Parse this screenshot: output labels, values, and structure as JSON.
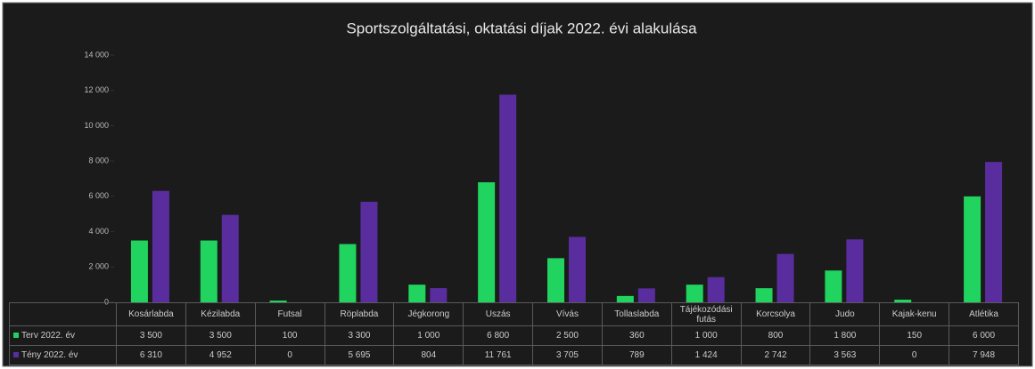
{
  "chart_data": {
    "type": "bar",
    "title": "Sportszolgáltatási, oktatási díjak 2022. évi alakulása",
    "categories": [
      "Kosárlabda",
      "Kézilabda",
      "Futsal",
      "Röplabda",
      "Jégkorong",
      "Uszás",
      "Vívás",
      "Tollaslabda",
      "Tájékozódási futás",
      "Korcsolya",
      "Judo",
      "Kajak-kenu",
      "Atlétika"
    ],
    "series": [
      {
        "name": "Terv 2022. év",
        "color": "#21d35f",
        "values": [
          3500,
          3500,
          100,
          3300,
          1000,
          6800,
          2500,
          360,
          1000,
          800,
          1800,
          150,
          6000
        ],
        "value_labels": [
          "3 500",
          "3 500",
          "100",
          "3 300",
          "1 000",
          "6 800",
          "2 500",
          "360",
          "1 000",
          "800",
          "1 800",
          "150",
          "6 000"
        ]
      },
      {
        "name": "Tény 2022. év",
        "color": "#5a2d9e",
        "values": [
          6310,
          4952,
          0,
          5695,
          804,
          11761,
          3705,
          789,
          1424,
          2742,
          3563,
          0,
          7948
        ],
        "value_labels": [
          "6 310",
          "4 952",
          "0",
          "5 695",
          "804",
          "11 761",
          "3 705",
          "789",
          "1 424",
          "2 742",
          "3 563",
          "0",
          "7 948"
        ]
      }
    ],
    "ylim": [
      0,
      14000
    ],
    "yticks": [
      0,
      {
        "value": 2000,
        "label": "2 000"
      },
      {
        "value": 4000,
        "label": "4 000"
      },
      {
        "value": 6000,
        "label": "6 000"
      },
      {
        "value": 8000,
        "label": "8 000"
      },
      {
        "value": 10000,
        "label": "10 000"
      },
      {
        "value": 12000,
        "label": "12 000"
      },
      {
        "value": 14000,
        "label": "14 000"
      }
    ]
  }
}
